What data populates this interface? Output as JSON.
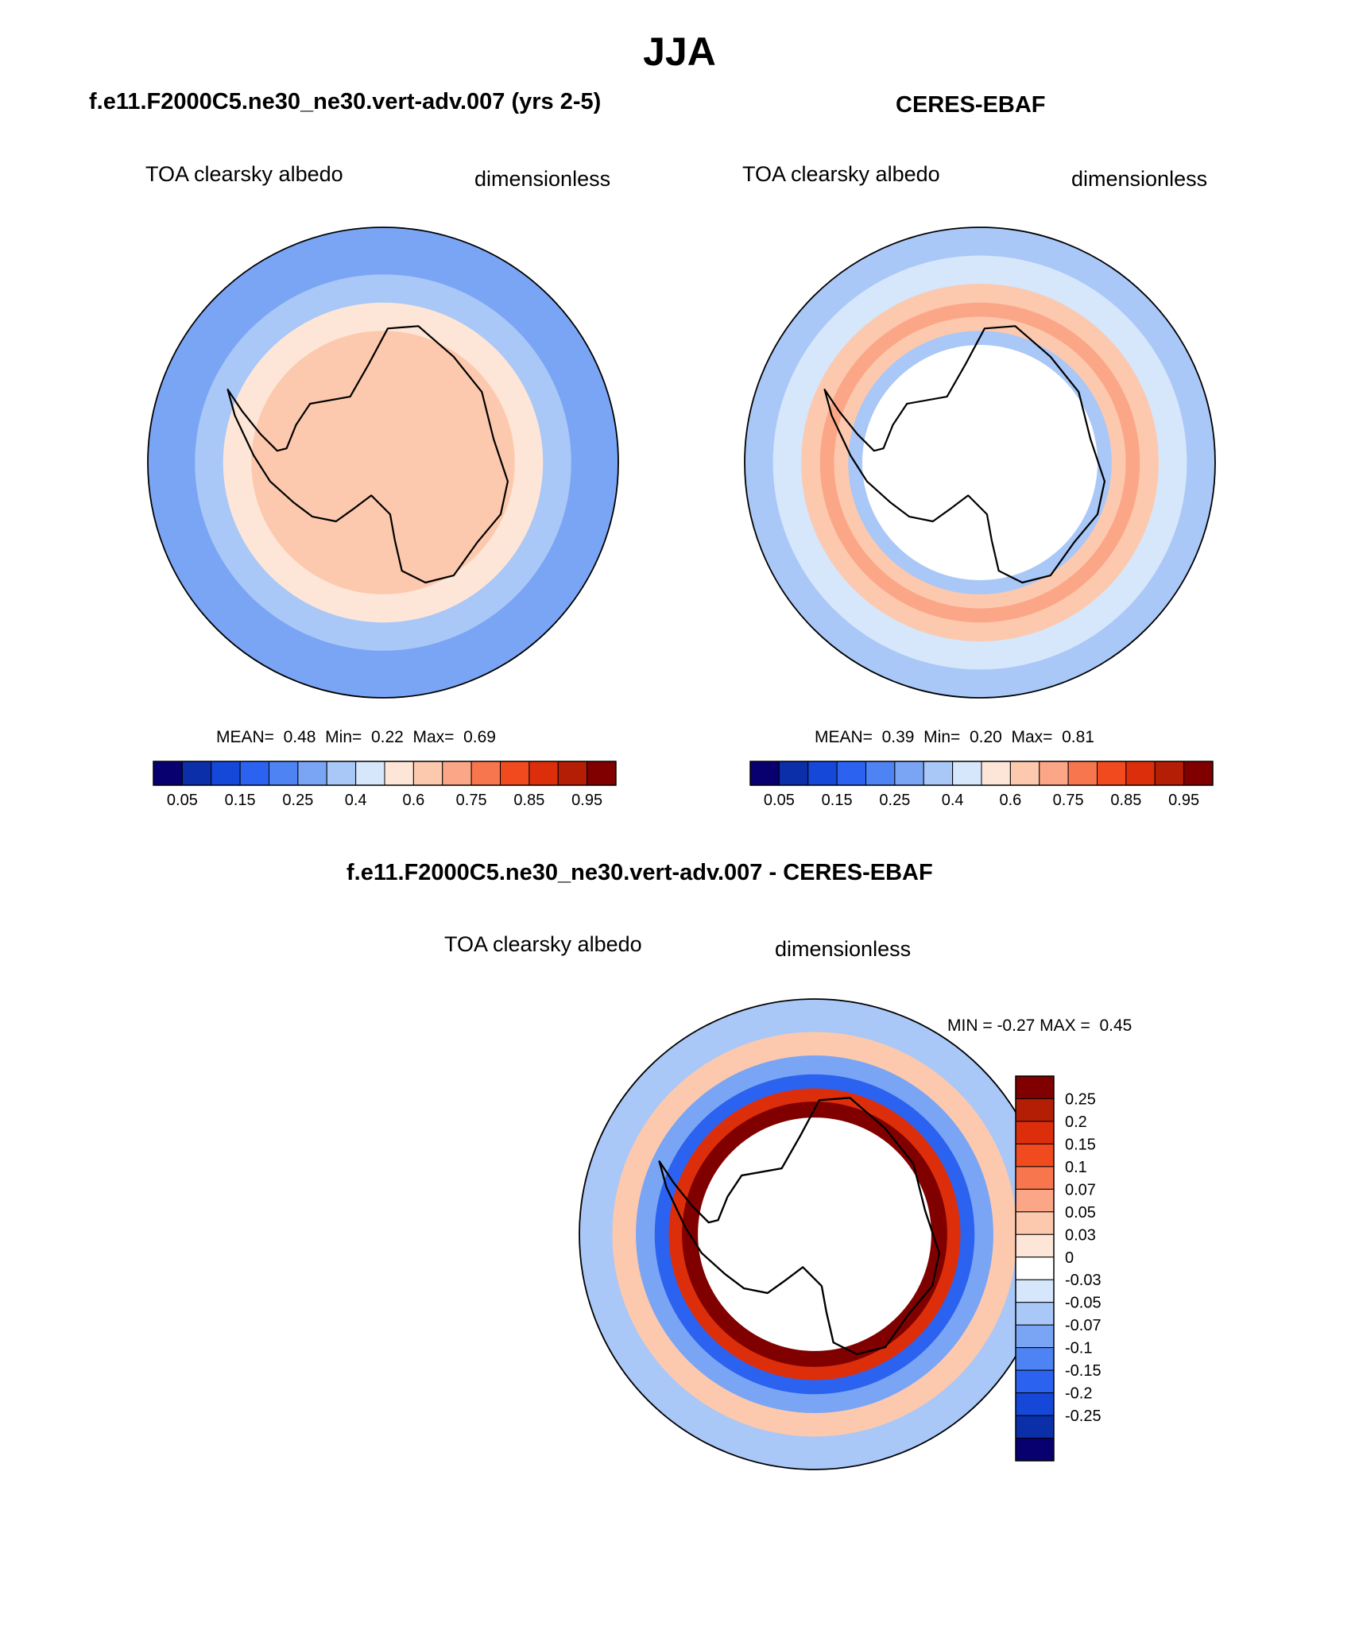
{
  "title": "JJA",
  "colors": {
    "abs_levels": [
      "#08006e",
      "#0a2fa8",
      "#1548d9",
      "#2b63f0",
      "#4d83f2",
      "#7aa5f4",
      "#a9c7f7",
      "#d6e6fb",
      "#fde6d7",
      "#fcc9ae",
      "#fba787",
      "#f8764d",
      "#f14a1f",
      "#dc2e0b",
      "#b31e05",
      "#800000"
    ],
    "diff_levels": [
      "#800000",
      "#b31e05",
      "#dc2e0b",
      "#f14a1f",
      "#f8764d",
      "#fba787",
      "#fcc9ae",
      "#fde6d7",
      "#ffffff",
      "#d6e6fb",
      "#a9c7f7",
      "#7aa5f4",
      "#4d83f2",
      "#2b63f0",
      "#1548d9",
      "#0a2fa8",
      "#08006e"
    ]
  },
  "chart_data": [
    {
      "type": "heatmap",
      "projection": "south-polar-stereographic",
      "title": "f.e11.F2000C5.ne30_ne30.vert-adv.007 (yrs 2-5)",
      "left_label": "TOA clearsky albedo",
      "right_label": "dimensionless",
      "stats": {
        "mean_label": "MEAN=",
        "mean": "0.48",
        "min_label": "Min=",
        "min": "0.22",
        "max_label": "Max=",
        "max": "0.69"
      },
      "colorbar": {
        "orientation": "horizontal",
        "ticks": [
          "0.05",
          "0.15",
          "0.25",
          "0.4",
          "0.6",
          "0.75",
          "0.85",
          "0.95"
        ]
      },
      "field_bands": [
        {
          "lat": -40,
          "value": 0.28
        },
        {
          "lat": -50,
          "value": 0.33
        },
        {
          "lat": -56,
          "value": 0.42
        },
        {
          "lat": -62,
          "value": 0.55
        },
        {
          "lat": -82,
          "value": 0.55
        },
        {
          "lat": -86,
          "value": 0.5
        }
      ]
    },
    {
      "type": "heatmap",
      "projection": "south-polar-stereographic",
      "title": "CERES-EBAF",
      "left_label": "TOA clearsky albedo",
      "right_label": "dimensionless",
      "stats": {
        "mean_label": "MEAN=",
        "mean": "0.39",
        "min_label": "Min=",
        "min": "0.20",
        "max_label": "Max=",
        "max": "0.81"
      },
      "colorbar": {
        "orientation": "horizontal",
        "ticks": [
          "0.05",
          "0.15",
          "0.25",
          "0.4",
          "0.6",
          "0.75",
          "0.85",
          "0.95"
        ]
      },
      "field_bands": [
        {
          "lat": -40,
          "value": 0.33
        },
        {
          "lat": -46,
          "value": 0.37
        },
        {
          "lat": -52,
          "value": 0.52
        },
        {
          "lat": -56,
          "value": 0.66
        },
        {
          "lat": -59,
          "value": 0.5
        },
        {
          "lat": -62,
          "value": 0.3
        },
        {
          "lat": -65,
          "value": null
        }
      ]
    },
    {
      "type": "heatmap",
      "projection": "south-polar-stereographic",
      "title": "f.e11.F2000C5.ne30_ne30.vert-adv.007 - CERES-EBAF",
      "left_label": "TOA clearsky albedo",
      "right_label": "dimensionless",
      "stats": {
        "min_label": "MIN =",
        "min": "-0.27",
        "max_label": "MAX =",
        "max": "0.45"
      },
      "colorbar": {
        "orientation": "vertical",
        "ticks": [
          "0.25",
          "0.2",
          "0.15",
          "0.1",
          "0.07",
          "0.05",
          "0.03",
          "0",
          "-0.03",
          "-0.05",
          "-0.07",
          "-0.1",
          "-0.15",
          "-0.2",
          "-0.25"
        ]
      },
      "field_bands": [
        {
          "lat": -40,
          "value": -0.05
        },
        {
          "lat": -47,
          "value": 0.04
        },
        {
          "lat": -52,
          "value": -0.08
        },
        {
          "lat": -56,
          "value": -0.18
        },
        {
          "lat": -59,
          "value": 0.2
        },
        {
          "lat": -62,
          "value": 0.3
        },
        {
          "lat": -65,
          "value": null
        }
      ]
    }
  ]
}
